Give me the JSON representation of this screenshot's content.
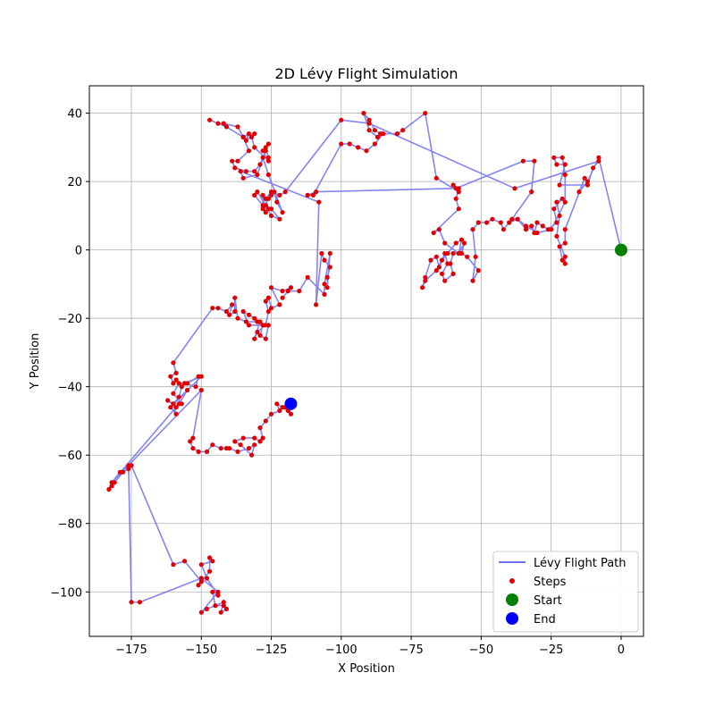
{
  "chart_data": {
    "type": "scatter",
    "title": "2D Lévy Flight Simulation",
    "xlabel": "X Position",
    "ylabel": "Y Position",
    "xlim": [
      -190,
      8
    ],
    "ylim": [
      -113,
      48
    ],
    "xticks": [
      -175,
      -150,
      -125,
      -100,
      -75,
      -50,
      -25,
      0
    ],
    "yticks": [
      -100,
      -80,
      -60,
      -40,
      -20,
      0,
      20,
      40
    ],
    "grid": true,
    "legend_position": "lower-right",
    "colors": {
      "path": "#6f6ff0",
      "steps": "#e00000",
      "start": "#008000",
      "end": "#0000ff"
    },
    "series": [
      {
        "name": "Lévy Flight Path",
        "kind": "line",
        "points": [
          [
            0,
            0
          ],
          [
            -8,
            27
          ],
          [
            -12,
            20
          ],
          [
            -15,
            17
          ],
          [
            -13,
            21
          ],
          [
            -20,
            6
          ],
          [
            -20,
            2
          ],
          [
            -22,
            1
          ],
          [
            -21,
            -3
          ],
          [
            -20,
            -4
          ],
          [
            -20,
            -2
          ],
          [
            -23,
            4
          ],
          [
            -22,
            10
          ],
          [
            -23,
            14
          ],
          [
            -21,
            15
          ],
          [
            -24,
            12
          ],
          [
            -23,
            8
          ],
          [
            -26,
            6
          ],
          [
            -28,
            7
          ],
          [
            -30,
            8
          ],
          [
            -31,
            5
          ],
          [
            -32,
            7
          ],
          [
            -34,
            6
          ],
          [
            -37,
            9
          ],
          [
            -40,
            8
          ],
          [
            -42,
            6
          ],
          [
            -43,
            8
          ],
          [
            -46,
            9
          ],
          [
            -48,
            8
          ],
          [
            -51,
            8
          ],
          [
            -53,
            6
          ],
          [
            -52,
            -2
          ],
          [
            -53,
            -9
          ],
          [
            -51,
            -6
          ],
          [
            -55,
            -2
          ],
          [
            -57,
            -1
          ],
          [
            -56,
            2
          ],
          [
            -58,
            -1
          ],
          [
            -60,
            -1
          ],
          [
            -61,
            -4
          ],
          [
            -60,
            -7
          ],
          [
            -63,
            -9
          ],
          [
            -64,
            -7
          ],
          [
            -62,
            -4
          ],
          [
            -63,
            -1
          ],
          [
            -65,
            -5
          ],
          [
            -66,
            -2
          ],
          [
            -68,
            -3
          ],
          [
            -70,
            -8
          ],
          [
            -71,
            -11
          ],
          [
            -70,
            -9
          ],
          [
            -66,
            -6
          ],
          [
            -64,
            -3
          ],
          [
            -62,
            -1
          ],
          [
            -59,
            2
          ],
          [
            -57,
            3
          ],
          [
            -58,
            -1
          ],
          [
            -63,
            2
          ],
          [
            -65,
            6
          ],
          [
            -67,
            5
          ],
          [
            -58,
            12
          ],
          [
            -59,
            15
          ],
          [
            -58,
            18
          ],
          [
            -60,
            19
          ],
          [
            -58,
            17
          ],
          [
            -66,
            21
          ],
          [
            -70,
            40
          ],
          [
            -78,
            35
          ],
          [
            -80,
            34
          ],
          [
            -86,
            34
          ],
          [
            -88,
            35
          ],
          [
            -90,
            38
          ],
          [
            -92,
            40
          ],
          [
            -90,
            35
          ],
          [
            -87,
            33
          ],
          [
            -85,
            34
          ],
          [
            -88,
            31
          ],
          [
            -91,
            29
          ],
          [
            -94,
            30
          ],
          [
            -97,
            31
          ],
          [
            -100,
            31
          ],
          [
            -110,
            16
          ],
          [
            -112,
            16
          ],
          [
            -109,
            17
          ],
          [
            -59,
            18
          ],
          [
            -35,
            26
          ],
          [
            -31,
            26
          ],
          [
            -32,
            17
          ],
          [
            -39,
            9
          ],
          [
            -37,
            9
          ],
          [
            -34,
            7
          ],
          [
            -30,
            5
          ],
          [
            -25,
            6
          ],
          [
            -20,
            14
          ],
          [
            -20,
            22
          ],
          [
            -21,
            27
          ],
          [
            -24,
            27
          ],
          [
            -23,
            25
          ],
          [
            -20,
            25
          ],
          [
            -22,
            19
          ],
          [
            -12,
            19
          ],
          [
            -10,
            24
          ],
          [
            -8,
            26
          ],
          [
            -38,
            18
          ],
          [
            -90,
            37
          ],
          [
            -100,
            38
          ],
          [
            -120,
            17
          ],
          [
            -122,
            16
          ],
          [
            -125,
            17
          ],
          [
            -127,
            15
          ],
          [
            -126,
            12
          ],
          [
            -125,
            12
          ],
          [
            -122,
            9
          ],
          [
            -125,
            10
          ],
          [
            -127,
            13
          ],
          [
            -130,
            17
          ],
          [
            -131,
            16
          ],
          [
            -128,
            13
          ],
          [
            -127,
            11
          ],
          [
            -128,
            16
          ],
          [
            -128,
            12
          ],
          [
            -126,
            15
          ],
          [
            -125,
            16
          ],
          [
            -124,
            17
          ],
          [
            -123,
            14
          ],
          [
            -121,
            11
          ],
          [
            -126,
            22
          ],
          [
            -128,
            27
          ],
          [
            -126,
            27
          ],
          [
            -127,
            30
          ],
          [
            -126,
            31
          ],
          [
            -128,
            29
          ],
          [
            -126,
            26
          ],
          [
            -131,
            30
          ],
          [
            -132,
            33
          ],
          [
            -131,
            34
          ],
          [
            -134,
            32
          ],
          [
            -133,
            34
          ],
          [
            -135,
            33
          ],
          [
            -137,
            36
          ],
          [
            -142,
            37
          ],
          [
            -144,
            37
          ],
          [
            -147,
            38
          ],
          [
            -141,
            36
          ],
          [
            -135,
            33
          ],
          [
            -133,
            29
          ],
          [
            -137,
            26
          ],
          [
            -139,
            26
          ],
          [
            -138,
            24
          ],
          [
            -134,
            23
          ],
          [
            -131,
            23
          ],
          [
            -129,
            25
          ],
          [
            -127,
            29
          ],
          [
            -130,
            22
          ],
          [
            -135,
            21
          ],
          [
            -136,
            23
          ],
          [
            -108,
            14
          ],
          [
            -109,
            -16
          ],
          [
            -107,
            -1
          ],
          [
            -106,
            -3
          ],
          [
            -104,
            -5
          ],
          [
            -105,
            -8
          ],
          [
            -105,
            -11
          ],
          [
            -104,
            -1
          ],
          [
            -106,
            -10
          ],
          [
            -106,
            -13
          ],
          [
            -112,
            -8
          ],
          [
            -115,
            -12
          ],
          [
            -119,
            -12
          ],
          [
            -121,
            -14
          ],
          [
            -118,
            -11
          ],
          [
            -121,
            -12
          ],
          [
            -125,
            -11
          ],
          [
            -122,
            -16
          ],
          [
            -125,
            -17
          ],
          [
            -126,
            -14
          ],
          [
            -127,
            -15
          ],
          [
            -126,
            -18
          ],
          [
            -127,
            -22
          ],
          [
            -130,
            -24
          ],
          [
            -131,
            -26
          ],
          [
            -129,
            -21
          ],
          [
            -131,
            -20
          ],
          [
            -133,
            -19
          ],
          [
            -135,
            -18
          ],
          [
            -133,
            -22
          ],
          [
            -128,
            -22
          ],
          [
            -129,
            -25
          ],
          [
            -127,
            -26
          ],
          [
            -126,
            -22
          ],
          [
            -130,
            -21
          ],
          [
            -134,
            -21
          ],
          [
            -137,
            -20
          ],
          [
            -138,
            -14
          ],
          [
            -138,
            -18
          ],
          [
            -140,
            -19
          ],
          [
            -139,
            -16
          ],
          [
            -141,
            -18
          ],
          [
            -144,
            -17
          ],
          [
            -146,
            -17
          ],
          [
            -160,
            -33
          ],
          [
            -159,
            -36
          ],
          [
            -161,
            -37
          ],
          [
            -160,
            -39
          ],
          [
            -159,
            -38
          ],
          [
            -157,
            -40
          ],
          [
            -158,
            -43
          ],
          [
            -160,
            -45
          ],
          [
            -162,
            -44
          ],
          [
            -159,
            -46
          ],
          [
            -157,
            -45
          ],
          [
            -160,
            -42
          ],
          [
            -158,
            -39
          ],
          [
            -155,
            -39
          ],
          [
            -151,
            -37
          ],
          [
            -152,
            -40
          ],
          [
            -156,
            -39
          ],
          [
            -150,
            -37
          ],
          [
            -161,
            -46
          ],
          [
            -159,
            -48
          ],
          [
            -160,
            -45
          ],
          [
            -155,
            -41
          ],
          [
            -158,
            -45
          ],
          [
            -182,
            -68
          ],
          [
            -183,
            -70
          ],
          [
            -182,
            -69
          ],
          [
            -181,
            -68
          ],
          [
            -178,
            -65
          ],
          [
            -176,
            -64
          ],
          [
            -175,
            -63
          ],
          [
            -160,
            -92
          ],
          [
            -156,
            -91
          ],
          [
            -150,
            -97
          ],
          [
            -151,
            -98
          ],
          [
            -147,
            -94
          ],
          [
            -147,
            -90
          ],
          [
            -146,
            -91
          ],
          [
            -150,
            -92
          ],
          [
            -148,
            -96
          ],
          [
            -144,
            -101
          ],
          [
            -146,
            -100
          ],
          [
            -145,
            -104
          ],
          [
            -142,
            -104
          ],
          [
            -141,
            -105
          ],
          [
            -143,
            -106
          ],
          [
            -142,
            -103
          ],
          [
            -148,
            -105
          ],
          [
            -150,
            -106
          ],
          [
            -144,
            -100
          ],
          [
            -150,
            -96
          ],
          [
            -172,
            -103
          ],
          [
            -175,
            -103
          ],
          [
            -176,
            -63
          ],
          [
            -179,
            -65
          ],
          [
            -182,
            -68
          ],
          [
            -150,
            -41
          ],
          [
            -153,
            -55
          ],
          [
            -154,
            -56
          ],
          [
            -153,
            -58
          ],
          [
            -151,
            -59
          ],
          [
            -148,
            -59
          ],
          [
            -146,
            -57
          ],
          [
            -143,
            -58
          ],
          [
            -141,
            -58
          ],
          [
            -140,
            -58
          ],
          [
            -137,
            -59
          ],
          [
            -133,
            -58
          ],
          [
            -131,
            -57
          ],
          [
            -132,
            -60
          ],
          [
            -136,
            -57
          ],
          [
            -138,
            -56
          ],
          [
            -135,
            -55
          ],
          [
            -131,
            -55
          ],
          [
            -129,
            -56
          ],
          [
            -128,
            -55
          ],
          [
            -129,
            -52
          ],
          [
            -127,
            -50
          ],
          [
            -125,
            -48
          ],
          [
            -122,
            -47
          ],
          [
            -123,
            -45
          ],
          [
            -121,
            -46
          ],
          [
            -119,
            -47
          ],
          [
            -118,
            -48
          ],
          [
            -120,
            -46
          ],
          [
            -118,
            -45
          ]
        ]
      },
      {
        "name": "Steps",
        "kind": "scatter",
        "same_as": "Lévy Flight Path"
      },
      {
        "name": "Start",
        "kind": "marker",
        "points": [
          [
            0,
            0
          ]
        ]
      },
      {
        "name": "End",
        "kind": "marker",
        "points": [
          [
            -118,
            -45
          ]
        ]
      }
    ]
  }
}
